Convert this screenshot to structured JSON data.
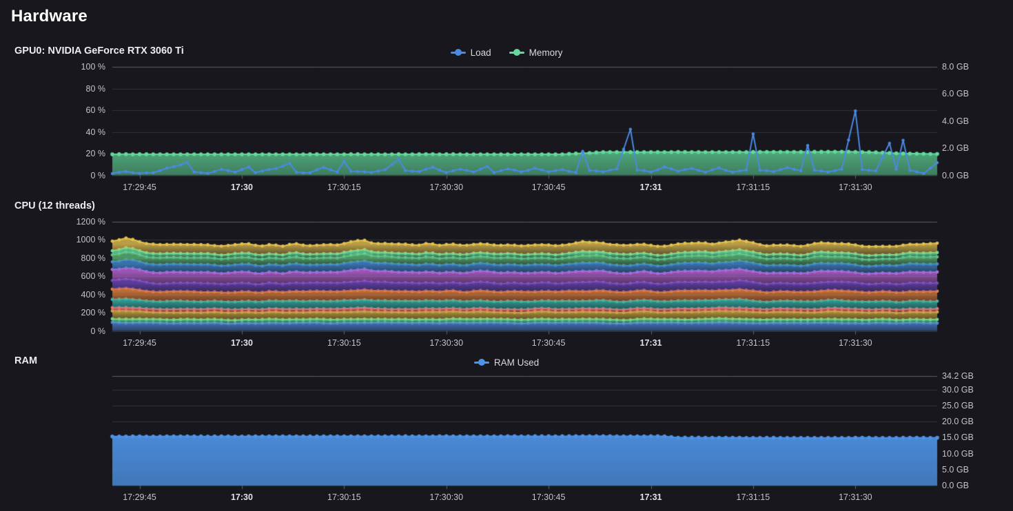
{
  "page": {
    "title": "Hardware"
  },
  "colors": {
    "background": "#17171d",
    "grid_line": "rgba(255,255,255,0.13)",
    "grid_line_top": "rgba(255,255,255,0.30)",
    "axis_tick_mark": "#63636b",
    "axis_text": "#c3c3c9",
    "axis_text_bold": "#e2e2e6"
  },
  "chart_data": [
    {
      "id": "gpu",
      "type": "line",
      "title": "GPU0: NVIDIA GeForce RTX 3060 Ti",
      "legend": [
        {
          "label": "Load",
          "color": "#4a8ae4"
        },
        {
          "label": "Memory",
          "color": "#63da9b"
        }
      ],
      "time_start": "17:29:41",
      "time_end": "17:31:42",
      "points": 122,
      "interval_seconds": 1,
      "x_ticks": [
        {
          "index": 4,
          "label": "17:29:45",
          "bold": false
        },
        {
          "index": 19,
          "label": "17:30",
          "bold": true
        },
        {
          "index": 34,
          "label": "17:30:15",
          "bold": false
        },
        {
          "index": 49,
          "label": "17:30:30",
          "bold": false
        },
        {
          "index": 64,
          "label": "17:30:45",
          "bold": false
        },
        {
          "index": 79,
          "label": "17:31",
          "bold": true
        },
        {
          "index": 94,
          "label": "17:31:15",
          "bold": false
        },
        {
          "index": 109,
          "label": "17:31:30",
          "bold": false
        }
      ],
      "axes": {
        "left": {
          "min": 0,
          "max": 100,
          "grid": true,
          "ticks": [
            {
              "v": 100,
              "label": "100 %"
            },
            {
              "v": 80,
              "label": "80 %"
            },
            {
              "v": 60,
              "label": "60 %"
            },
            {
              "v": 40,
              "label": "40 %"
            },
            {
              "v": 20,
              "label": "20 %"
            },
            {
              "v": 0,
              "label": "0 %"
            }
          ]
        },
        "right": {
          "min": 0,
          "max": 8,
          "grid": false,
          "ticks": [
            {
              "v": 8,
              "label": "8.0 GB"
            },
            {
              "v": 6,
              "label": "6.0 GB"
            },
            {
              "v": 4,
              "label": "4.0 GB"
            },
            {
              "v": 2,
              "label": "2.0 GB"
            },
            {
              "v": 0,
              "label": "0.0 GB"
            }
          ]
        }
      },
      "series": [
        {
          "name": "Load",
          "axis": "left",
          "color": "#4a8ae4",
          "fill": false,
          "noise": 1.0,
          "seed": 7,
          "keyframes": [
            [
              0,
              2
            ],
            [
              2,
              4
            ],
            [
              4,
              2
            ],
            [
              6,
              3
            ],
            [
              9,
              8
            ],
            [
              11,
              12
            ],
            [
              12,
              3
            ],
            [
              14,
              2
            ],
            [
              16,
              5
            ],
            [
              18,
              3
            ],
            [
              20,
              8
            ],
            [
              21,
              3
            ],
            [
              24,
              6
            ],
            [
              26,
              11
            ],
            [
              27,
              3
            ],
            [
              29,
              2
            ],
            [
              31,
              7
            ],
            [
              33,
              3
            ],
            [
              34,
              13
            ],
            [
              35,
              4
            ],
            [
              38,
              3
            ],
            [
              40,
              6
            ],
            [
              42,
              15
            ],
            [
              43,
              4
            ],
            [
              45,
              3
            ],
            [
              47,
              8
            ],
            [
              49,
              3
            ],
            [
              51,
              6
            ],
            [
              53,
              3
            ],
            [
              55,
              9
            ],
            [
              56,
              3
            ],
            [
              58,
              6
            ],
            [
              60,
              3
            ],
            [
              62,
              7
            ],
            [
              64,
              3
            ],
            [
              66,
              5
            ],
            [
              68,
              3
            ],
            [
              69,
              22
            ],
            [
              70,
              4
            ],
            [
              72,
              3
            ],
            [
              74,
              6
            ],
            [
              76,
              43
            ],
            [
              77,
              5
            ],
            [
              79,
              3
            ],
            [
              81,
              8
            ],
            [
              83,
              4
            ],
            [
              85,
              6
            ],
            [
              87,
              3
            ],
            [
              89,
              7
            ],
            [
              91,
              3
            ],
            [
              93,
              5
            ],
            [
              94,
              38
            ],
            [
              95,
              4
            ],
            [
              97,
              3
            ],
            [
              99,
              8
            ],
            [
              101,
              4
            ],
            [
              102,
              27
            ],
            [
              103,
              4
            ],
            [
              105,
              3
            ],
            [
              107,
              5
            ],
            [
              109,
              59
            ],
            [
              110,
              5
            ],
            [
              112,
              4
            ],
            [
              114,
              30
            ],
            [
              115,
              6
            ],
            [
              116,
              32
            ],
            [
              117,
              4
            ],
            [
              119,
              2
            ],
            [
              121,
              12
            ]
          ]
        },
        {
          "name": "Memory",
          "axis": "right",
          "color": "#63da9b",
          "fill": true,
          "noise": 0.012,
          "seed": 3,
          "keyframes": [
            [
              0,
              1.55
            ],
            [
              66,
              1.55
            ],
            [
              72,
              1.71
            ],
            [
              100,
              1.72
            ],
            [
              108,
              1.74
            ],
            [
              112,
              1.7
            ],
            [
              116,
              1.6
            ],
            [
              121,
              1.58
            ]
          ]
        }
      ]
    },
    {
      "id": "cpu",
      "type": "stacked-area",
      "title": "CPU (12 threads)",
      "legend": [],
      "time_start": "17:29:41",
      "time_end": "17:31:42",
      "points": 122,
      "interval_seconds": 1,
      "x_ticks": [
        {
          "index": 4,
          "label": "17:29:45",
          "bold": false
        },
        {
          "index": 19,
          "label": "17:30",
          "bold": true
        },
        {
          "index": 34,
          "label": "17:30:15",
          "bold": false
        },
        {
          "index": 49,
          "label": "17:30:30",
          "bold": false
        },
        {
          "index": 64,
          "label": "17:30:45",
          "bold": false
        },
        {
          "index": 79,
          "label": "17:31",
          "bold": true
        },
        {
          "index": 94,
          "label": "17:31:15",
          "bold": false
        },
        {
          "index": 109,
          "label": "17:31:30",
          "bold": false
        }
      ],
      "axes": {
        "left": {
          "min": 0,
          "max": 1200,
          "grid": true,
          "ticks": [
            {
              "v": 1200,
              "label": "1200 %"
            },
            {
              "v": 1000,
              "label": "1000 %"
            },
            {
              "v": 800,
              "label": "800 %"
            },
            {
              "v": 600,
              "label": "600 %"
            },
            {
              "v": 400,
              "label": "400 %"
            },
            {
              "v": 200,
              "label": "200 %"
            },
            {
              "v": 0,
              "label": "0 %"
            }
          ]
        }
      },
      "total_baseline_pct": 945,
      "surges": [
        {
          "index": 2,
          "scale": 1.07,
          "width": 5
        },
        {
          "index": 37,
          "scale": 1.07,
          "width": 4
        },
        {
          "index": 69,
          "scale": 1.04,
          "width": 4
        },
        {
          "index": 92,
          "scale": 1.07,
          "width": 4
        },
        {
          "index": 104,
          "scale": 1.03,
          "width": 4
        }
      ],
      "series": [
        {
          "color": "#4d82d6",
          "base": 85,
          "noise": 7,
          "seed": 21
        },
        {
          "color": "#68dd9d",
          "base": 42,
          "noise": 5,
          "seed": 22
        },
        {
          "color": "#c9a93f",
          "base": 80,
          "noise": 7,
          "seed": 23
        },
        {
          "color": "#ef7070",
          "base": 34,
          "noise": 4,
          "seed": 24
        },
        {
          "color": "#37b6ab",
          "base": 86,
          "noise": 7,
          "seed": 25
        },
        {
          "color": "#e8833f",
          "base": 106,
          "noise": 8,
          "seed": 26
        },
        {
          "color": "#6b46b8",
          "base": 90,
          "noise": 7,
          "seed": 27
        },
        {
          "color": "#bb66d9",
          "base": 120,
          "noise": 9,
          "seed": 28
        },
        {
          "color": "#4287d0",
          "base": 84,
          "noise": 7,
          "seed": 29
        },
        {
          "color": "#5cb87a",
          "base": 74,
          "noise": 6,
          "seed": 30
        },
        {
          "color": "#68dd9d",
          "base": 46,
          "noise": 5,
          "seed": 31
        },
        {
          "color": "#e3c14f",
          "base": 98,
          "noise": 8,
          "seed": 32
        }
      ]
    },
    {
      "id": "ram",
      "type": "line",
      "title": "RAM",
      "legend": [
        {
          "label": "RAM Used",
          "color": "#4e93e6"
        }
      ],
      "time_start": "17:29:41",
      "time_end": "17:31:42",
      "points": 122,
      "interval_seconds": 1,
      "x_ticks": [
        {
          "index": 4,
          "label": "17:29:45",
          "bold": false
        },
        {
          "index": 19,
          "label": "17:30",
          "bold": true
        },
        {
          "index": 34,
          "label": "17:30:15",
          "bold": false
        },
        {
          "index": 49,
          "label": "17:30:30",
          "bold": false
        },
        {
          "index": 64,
          "label": "17:30:45",
          "bold": false
        },
        {
          "index": 79,
          "label": "17:31",
          "bold": true
        },
        {
          "index": 94,
          "label": "17:31:15",
          "bold": false
        },
        {
          "index": 109,
          "label": "17:31:30",
          "bold": false
        }
      ],
      "axes": {
        "right": {
          "min": 0,
          "max": 34.2,
          "grid": true,
          "ticks": [
            {
              "v": 34.2,
              "label": "34.2 GB"
            },
            {
              "v": 30,
              "label": "30.0 GB"
            },
            {
              "v": 25,
              "label": "25.0 GB"
            },
            {
              "v": 20,
              "label": "20.0 GB"
            },
            {
              "v": 15,
              "label": "15.0 GB"
            },
            {
              "v": 10,
              "label": "10.0 GB"
            },
            {
              "v": 5,
              "label": "5.0 GB"
            },
            {
              "v": 0,
              "label": "0.0 GB"
            }
          ]
        }
      },
      "series": [
        {
          "name": "RAM Used",
          "axis": "right",
          "color": "#4e93e6",
          "fill": true,
          "fill_opaque": true,
          "noise": 0.04,
          "seed": 11,
          "keyframes": [
            [
              0,
              15.35
            ],
            [
              70,
              15.4
            ],
            [
              81,
              15.38
            ],
            [
              83,
              14.95
            ],
            [
              100,
              14.9
            ],
            [
              121,
              14.92
            ]
          ]
        }
      ]
    }
  ]
}
